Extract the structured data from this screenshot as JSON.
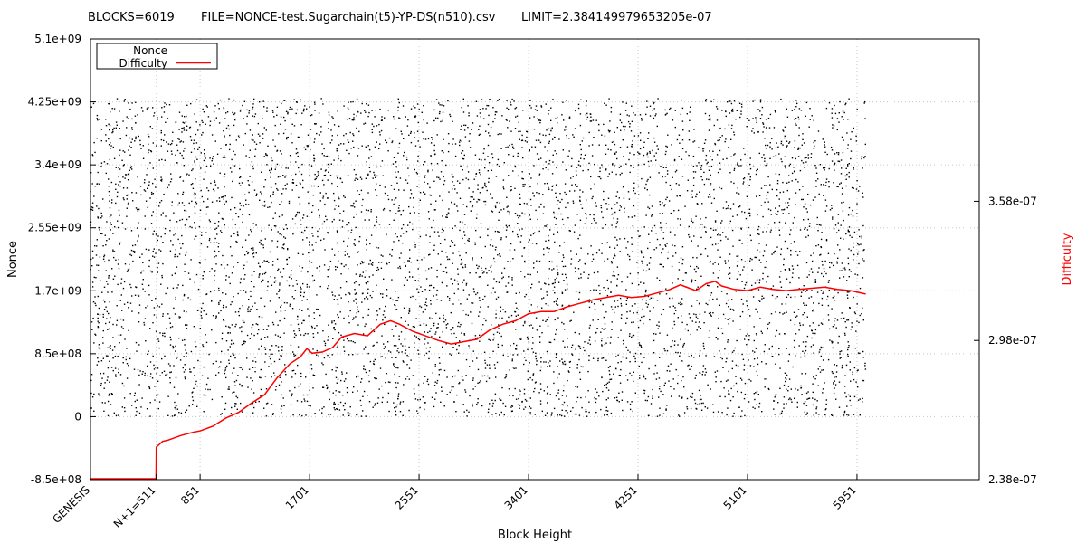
{
  "header": {
    "blocks": "BLOCKS=6019",
    "file": "FILE=NONCE-test.Sugarchain(t5)-YP-DS(n510).csv",
    "limit": "LIMIT=2.384149979653205e-07"
  },
  "chart_data": {
    "type": "scatter",
    "title": "",
    "xlabel": "Block Height",
    "ylabel": "Nonce",
    "y2label": "Difficulty",
    "xlim": [
      0,
      6900
    ],
    "ylim": [
      -850000000,
      5100000000
    ],
    "y2lim": [
      2.38e-07,
      4.28e-07
    ],
    "grid": true,
    "legend_position": "top-left",
    "x_ticks": [
      {
        "value": 0,
        "label": "GENESIS"
      },
      {
        "value": 511,
        "label": "N+1=511"
      },
      {
        "value": 851,
        "label": "851"
      },
      {
        "value": 1701,
        "label": "1701"
      },
      {
        "value": 2551,
        "label": "2551"
      },
      {
        "value": 3401,
        "label": "3401"
      },
      {
        "value": 4251,
        "label": "4251"
      },
      {
        "value": 5101,
        "label": "5101"
      },
      {
        "value": 5951,
        "label": "5951"
      }
    ],
    "y_ticks": [
      {
        "value": -850000000,
        "label": "-8.5e+08"
      },
      {
        "value": 0,
        "label": "0"
      },
      {
        "value": 850000000,
        "label": "8.5e+08"
      },
      {
        "value": 1700000000,
        "label": "1.7e+09"
      },
      {
        "value": 2550000000,
        "label": "2.55e+09"
      },
      {
        "value": 3400000000,
        "label": "3.4e+09"
      },
      {
        "value": 4250000000,
        "label": "4.25e+09"
      },
      {
        "value": 5100000000,
        "label": "5.1e+09"
      }
    ],
    "y2_ticks": [
      {
        "value": 2.38e-07,
        "label": "2.38e-07"
      },
      {
        "value": 2.98e-07,
        "label": "2.98e-07"
      },
      {
        "value": 3.58e-07,
        "label": "3.58e-07"
      }
    ],
    "series": [
      {
        "name": "Nonce",
        "color": "#000000",
        "style": "points",
        "axis": "y",
        "count": 6019,
        "x_range": [
          0,
          6019
        ],
        "y_range": [
          0,
          4294967295
        ],
        "distribution": "uniform"
      },
      {
        "name": "Difficulty",
        "color": "#ff0000",
        "style": "line",
        "axis": "y2",
        "points": [
          [
            0,
            2.384e-07
          ],
          [
            509,
            2.384e-07
          ],
          [
            511,
            2.52e-07
          ],
          [
            560,
            2.545e-07
          ],
          [
            600,
            2.55e-07
          ],
          [
            700,
            2.57e-07
          ],
          [
            800,
            2.585e-07
          ],
          [
            850,
            2.59e-07
          ],
          [
            950,
            2.61e-07
          ],
          [
            1050,
            2.645e-07
          ],
          [
            1150,
            2.67e-07
          ],
          [
            1250,
            2.71e-07
          ],
          [
            1350,
            2.745e-07
          ],
          [
            1450,
            2.82e-07
          ],
          [
            1550,
            2.88e-07
          ],
          [
            1630,
            2.91e-07
          ],
          [
            1680,
            2.945e-07
          ],
          [
            1720,
            2.925e-07
          ],
          [
            1800,
            2.93e-07
          ],
          [
            1880,
            2.95e-07
          ],
          [
            1950,
            2.995e-07
          ],
          [
            2050,
            3.01e-07
          ],
          [
            2150,
            3e-07
          ],
          [
            2250,
            3.05e-07
          ],
          [
            2330,
            3.065e-07
          ],
          [
            2400,
            3.05e-07
          ],
          [
            2500,
            3.02e-07
          ],
          [
            2600,
            3e-07
          ],
          [
            2700,
            2.98e-07
          ],
          [
            2800,
            2.965e-07
          ],
          [
            2900,
            2.975e-07
          ],
          [
            3000,
            2.985e-07
          ],
          [
            3100,
            3.025e-07
          ],
          [
            3200,
            3.05e-07
          ],
          [
            3300,
            3.065e-07
          ],
          [
            3400,
            3.095e-07
          ],
          [
            3500,
            3.105e-07
          ],
          [
            3600,
            3.105e-07
          ],
          [
            3700,
            3.125e-07
          ],
          [
            3800,
            3.14e-07
          ],
          [
            3900,
            3.155e-07
          ],
          [
            4000,
            3.165e-07
          ],
          [
            4100,
            3.175e-07
          ],
          [
            4200,
            3.165e-07
          ],
          [
            4300,
            3.17e-07
          ],
          [
            4400,
            3.185e-07
          ],
          [
            4500,
            3.2e-07
          ],
          [
            4580,
            3.22e-07
          ],
          [
            4650,
            3.205e-07
          ],
          [
            4700,
            3.195e-07
          ],
          [
            4780,
            3.225e-07
          ],
          [
            4850,
            3.235e-07
          ],
          [
            4900,
            3.215e-07
          ],
          [
            5000,
            3.2e-07
          ],
          [
            5100,
            3.195e-07
          ],
          [
            5200,
            3.21e-07
          ],
          [
            5300,
            3.2e-07
          ],
          [
            5400,
            3.195e-07
          ],
          [
            5500,
            3.2e-07
          ],
          [
            5600,
            3.205e-07
          ],
          [
            5700,
            3.21e-07
          ],
          [
            5800,
            3.2e-07
          ],
          [
            5900,
            3.195e-07
          ],
          [
            6019,
            3.18e-07
          ]
        ]
      }
    ]
  }
}
